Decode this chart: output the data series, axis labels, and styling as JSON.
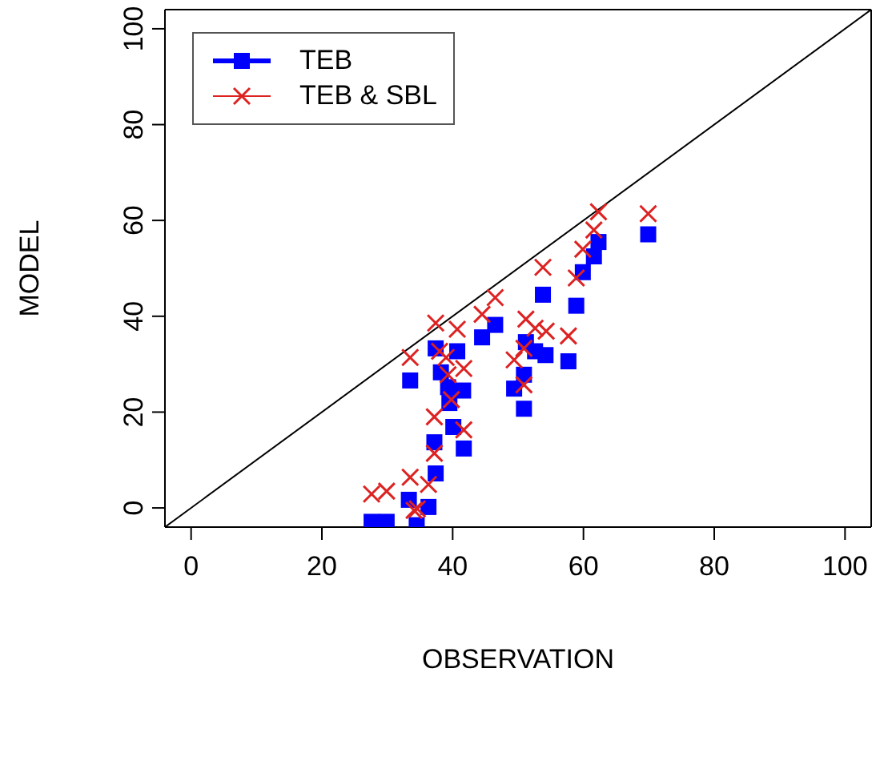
{
  "chart_data": {
    "type": "scatter",
    "xlabel": "OBSERVATION",
    "ylabel": "MODEL",
    "xlim": [
      -4,
      104
    ],
    "ylim": [
      -4,
      104
    ],
    "xticks": [
      0,
      20,
      40,
      60,
      80,
      100
    ],
    "yticks": [
      0,
      20,
      40,
      60,
      80,
      100
    ],
    "legend": "top left",
    "series": [
      {
        "name": "TEB",
        "color": "#0000ff",
        "marker": "square",
        "x": [
          27.6,
          29.9,
          34.5,
          33.3,
          36.3,
          37.4,
          37.2,
          41.7,
          40.1,
          39.5,
          39.3,
          41.6,
          38.2,
          33.5,
          37.4,
          40.7,
          44.5,
          46.5,
          49.4,
          50.9,
          50.9,
          51.2,
          52.6,
          54.2,
          57.7,
          53.8,
          58.9,
          59.9,
          61.6,
          62.3,
          69.9
        ],
        "values": [
          -2.9,
          -2.9,
          -3.6,
          1.7,
          0.2,
          7.2,
          13.7,
          12.4,
          16.9,
          21.9,
          25.2,
          24.5,
          28.3,
          26.6,
          33.3,
          32.7,
          35.6,
          38.2,
          24.9,
          27.8,
          20.7,
          34.6,
          32.7,
          31.9,
          30.6,
          44.5,
          42.2,
          49.2,
          52.5,
          55.5,
          57.1
        ]
      },
      {
        "name": "TEB & SBL",
        "color": "#dd2222",
        "marker": "cross",
        "x": [
          27.6,
          29.9,
          33.5,
          36.3,
          34.1,
          34.6,
          37.2,
          37.2,
          41.7,
          39.8,
          39.3,
          41.7,
          39.0,
          38.0,
          33.5,
          37.4,
          40.7,
          44.5,
          46.5,
          49.4,
          50.9,
          50.9,
          51.2,
          52.6,
          54.3,
          57.7,
          53.8,
          58.9,
          59.9,
          61.6,
          62.3,
          69.9
        ],
        "values": [
          2.9,
          3.5,
          6.4,
          4.9,
          -0.5,
          -0.2,
          11.4,
          19.0,
          16.3,
          22.6,
          27.8,
          29.1,
          31.4,
          32.7,
          31.4,
          38.6,
          37.3,
          40.4,
          43.9,
          30.9,
          33.3,
          25.7,
          39.4,
          37.5,
          36.9,
          35.9,
          50.2,
          48.0,
          54.0,
          58.0,
          61.8,
          61.4
        ]
      },
      {
        "type": "line",
        "color": "#000000",
        "marker": "none",
        "x": [
          -4,
          104
        ],
        "values": [
          -4,
          104
        ]
      }
    ]
  }
}
